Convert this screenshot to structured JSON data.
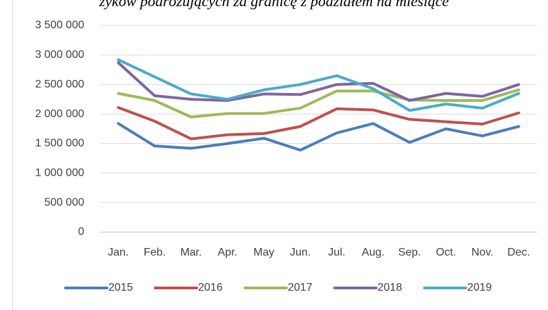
{
  "chart_data": {
    "type": "line",
    "title": "żyków podróżujących za granicę z podziałem na miesiące",
    "categories": [
      "Jan.",
      "Feb.",
      "Mar.",
      "Apr.",
      "May",
      "Jun.",
      "Jul.",
      "Aug.",
      "Sep.",
      "Oct.",
      "Nov.",
      "Dec."
    ],
    "series": [
      {
        "name": "2015",
        "color": "#4a7ebb",
        "values": [
          1840000,
          1460000,
          1420000,
          1500000,
          1590000,
          1390000,
          1680000,
          1840000,
          1520000,
          1750000,
          1630000,
          1790000
        ]
      },
      {
        "name": "2016",
        "color": "#c0504d",
        "values": [
          2110000,
          1880000,
          1580000,
          1650000,
          1670000,
          1790000,
          2090000,
          2070000,
          1910000,
          1870000,
          1830000,
          2020000
        ]
      },
      {
        "name": "2017",
        "color": "#9bbb59",
        "values": [
          2350000,
          2230000,
          1950000,
          2010000,
          2010000,
          2100000,
          2390000,
          2390000,
          2240000,
          2230000,
          2230000,
          2410000
        ]
      },
      {
        "name": "2018",
        "color": "#8064a2",
        "values": [
          2870000,
          2310000,
          2250000,
          2230000,
          2340000,
          2330000,
          2500000,
          2520000,
          2230000,
          2350000,
          2300000,
          2500000
        ]
      },
      {
        "name": "2019",
        "color": "#4bacc6",
        "values": [
          2920000,
          2630000,
          2340000,
          2250000,
          2410000,
          2500000,
          2650000,
          2430000,
          2060000,
          2170000,
          2100000,
          2350000
        ]
      }
    ],
    "ylim": [
      0,
      3500000
    ],
    "yticks": [
      0,
      {
        "value": 500000,
        "label": "500 000"
      },
      {
        "value": 1000000,
        "label": "1 000 000"
      },
      {
        "value": 1500000,
        "label": "1 500 000"
      },
      {
        "value": 2000000,
        "label": "2 000 000"
      },
      {
        "value": 2500000,
        "label": "2 500 000"
      },
      {
        "value": 3000000,
        "label": "3 000 000"
      },
      {
        "value": 3500000,
        "label": "3 500 000"
      }
    ],
    "grid": true,
    "legend": "bottom"
  }
}
